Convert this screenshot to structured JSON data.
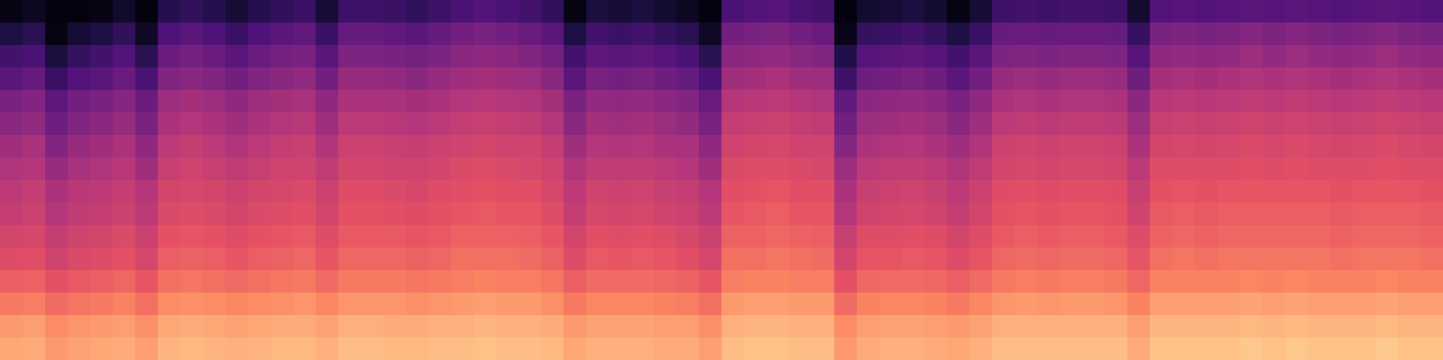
{
  "chart_data": {
    "type": "heatmap",
    "tick_labels": false,
    "zlim": [
      0,
      100
    ],
    "cells": [
      [
        3,
        6,
        2,
        2,
        3,
        8,
        2,
        15,
        18,
        15,
        10,
        15,
        18,
        20,
        10,
        21,
        21,
        20,
        18,
        21,
        24,
        26,
        24,
        22,
        18,
        3,
        12,
        10,
        12,
        9,
        6,
        2,
        24,
        26,
        27,
        24,
        22,
        2,
        9,
        10,
        12,
        9,
        3,
        10,
        21,
        22,
        21,
        22,
        22,
        21,
        9,
        26,
        27,
        26,
        27,
        28,
        27,
        28,
        27,
        26,
        27,
        28,
        27,
        26
      ],
      [
        13,
        16,
        3,
        10,
        13,
        18,
        7,
        25,
        28,
        25,
        20,
        25,
        28,
        30,
        20,
        31,
        31,
        30,
        28,
        31,
        34,
        36,
        34,
        32,
        28,
        13,
        22,
        20,
        22,
        19,
        16,
        7,
        34,
        36,
        37,
        34,
        32,
        4,
        19,
        20,
        22,
        19,
        13,
        20,
        31,
        32,
        31,
        32,
        32,
        31,
        19,
        36,
        37,
        36,
        37,
        39,
        37,
        39,
        37,
        36,
        37,
        39,
        37,
        36
      ],
      [
        22,
        24,
        12,
        19,
        22,
        26,
        16,
        32,
        35,
        32,
        28,
        32,
        35,
        36,
        28,
        37,
        37,
        36,
        35,
        37,
        40,
        41,
        40,
        38,
        35,
        22,
        29,
        28,
        29,
        27,
        24,
        16,
        40,
        41,
        42,
        40,
        38,
        14,
        27,
        28,
        29,
        27,
        22,
        28,
        37,
        38,
        37,
        38,
        38,
        37,
        27,
        41,
        42,
        41,
        42,
        44,
        42,
        44,
        42,
        41,
        42,
        44,
        42,
        41
      ],
      [
        28,
        31,
        20,
        26,
        28,
        32,
        24,
        38,
        40,
        38,
        34,
        38,
        40,
        42,
        34,
        43,
        43,
        42,
        40,
        43,
        45,
        46,
        45,
        44,
        40,
        28,
        36,
        34,
        36,
        33,
        31,
        24,
        45,
        46,
        48,
        45,
        44,
        21,
        33,
        34,
        36,
        33,
        28,
        34,
        43,
        44,
        43,
        44,
        44,
        43,
        33,
        46,
        48,
        46,
        48,
        49,
        48,
        49,
        48,
        46,
        48,
        49,
        48,
        46
      ],
      [
        36,
        38,
        29,
        34,
        36,
        39,
        32,
        44,
        46,
        44,
        41,
        44,
        46,
        47,
        41,
        48,
        48,
        47,
        46,
        48,
        50,
        51,
        50,
        49,
        46,
        36,
        42,
        41,
        42,
        40,
        38,
        32,
        50,
        51,
        52,
        50,
        49,
        30,
        40,
        41,
        42,
        40,
        36,
        41,
        48,
        49,
        48,
        49,
        49,
        48,
        40,
        51,
        52,
        51,
        52,
        53,
        52,
        53,
        52,
        51,
        52,
        53,
        52,
        51
      ],
      [
        40,
        42,
        33,
        38,
        40,
        43,
        36,
        48,
        50,
        48,
        45,
        48,
        50,
        51,
        45,
        52,
        52,
        51,
        50,
        52,
        54,
        55,
        54,
        53,
        50,
        40,
        46,
        45,
        46,
        44,
        42,
        36,
        54,
        55,
        56,
        54,
        53,
        34,
        44,
        45,
        46,
        44,
        40,
        45,
        52,
        53,
        52,
        53,
        53,
        52,
        44,
        55,
        56,
        55,
        56,
        57,
        56,
        57,
        56,
        55,
        56,
        57,
        56,
        55
      ],
      [
        45,
        47,
        38,
        43,
        45,
        48,
        41,
        52,
        54,
        52,
        49,
        52,
        54,
        55,
        49,
        56,
        56,
        55,
        54,
        56,
        57,
        58,
        57,
        57,
        54,
        45,
        50,
        49,
        50,
        48,
        47,
        41,
        57,
        58,
        59,
        57,
        57,
        39,
        48,
        49,
        50,
        48,
        45,
        49,
        56,
        57,
        56,
        57,
        57,
        56,
        48,
        58,
        59,
        58,
        59,
        60,
        59,
        60,
        59,
        58,
        59,
        60,
        59,
        58
      ],
      [
        49,
        50,
        43,
        47,
        49,
        51,
        45,
        55,
        57,
        55,
        53,
        55,
        57,
        57,
        53,
        58,
        58,
        57,
        57,
        58,
        60,
        61,
        60,
        59,
        57,
        49,
        53,
        53,
        53,
        52,
        50,
        45,
        60,
        61,
        61,
        60,
        59,
        44,
        52,
        53,
        53,
        52,
        49,
        53,
        58,
        59,
        58,
        59,
        59,
        58,
        52,
        61,
        61,
        61,
        61,
        62,
        61,
        62,
        61,
        61,
        61,
        62,
        61,
        61
      ],
      [
        52,
        54,
        48,
        51,
        52,
        54,
        50,
        58,
        59,
        58,
        56,
        58,
        59,
        60,
        56,
        61,
        61,
        60,
        59,
        61,
        62,
        63,
        62,
        62,
        59,
        52,
        57,
        56,
        57,
        55,
        54,
        50,
        62,
        63,
        64,
        62,
        62,
        48,
        55,
        56,
        57,
        55,
        52,
        56,
        61,
        62,
        61,
        62,
        62,
        61,
        55,
        63,
        64,
        63,
        64,
        64,
        64,
        64,
        64,
        63,
        64,
        64,
        64,
        63
      ],
      [
        54,
        56,
        50,
        53,
        54,
        56,
        52,
        60,
        61,
        60,
        58,
        60,
        61,
        62,
        58,
        63,
        63,
        62,
        61,
        63,
        64,
        65,
        64,
        64,
        61,
        54,
        59,
        58,
        59,
        57,
        56,
        52,
        64,
        65,
        66,
        64,
        64,
        50,
        57,
        58,
        59,
        57,
        54,
        58,
        63,
        64,
        63,
        64,
        64,
        63,
        57,
        65,
        66,
        65,
        66,
        66,
        66,
        66,
        66,
        65,
        66,
        66,
        66,
        65
      ],
      [
        58,
        59,
        54,
        57,
        58,
        60,
        56,
        63,
        64,
        63,
        61,
        63,
        64,
        65,
        61,
        65,
        65,
        65,
        64,
        65,
        67,
        67,
        67,
        66,
        64,
        58,
        62,
        61,
        62,
        61,
        59,
        56,
        67,
        67,
        68,
        67,
        66,
        55,
        61,
        61,
        62,
        61,
        58,
        61,
        65,
        66,
        65,
        66,
        66,
        65,
        61,
        67,
        68,
        67,
        68,
        68,
        68,
        68,
        68,
        67,
        68,
        68,
        68,
        67
      ],
      [
        61,
        62,
        57,
        60,
        61,
        63,
        59,
        66,
        67,
        66,
        64,
        66,
        67,
        68,
        64,
        68,
        68,
        68,
        67,
        68,
        70,
        70,
        70,
        69,
        67,
        61,
        65,
        64,
        65,
        64,
        62,
        59,
        70,
        70,
        71,
        70,
        69,
        58,
        64,
        64,
        65,
        64,
        61,
        64,
        68,
        69,
        68,
        69,
        69,
        68,
        64,
        70,
        71,
        70,
        71,
        71,
        71,
        71,
        71,
        70,
        71,
        71,
        71,
        70
      ],
      [
        66,
        67,
        63,
        65,
        66,
        68,
        64,
        70,
        71,
        70,
        69,
        70,
        71,
        72,
        69,
        72,
        72,
        72,
        71,
        72,
        73,
        74,
        73,
        73,
        71,
        66,
        69,
        69,
        69,
        68,
        67,
        64,
        73,
        74,
        74,
        73,
        73,
        63,
        68,
        69,
        69,
        68,
        66,
        69,
        72,
        73,
        72,
        73,
        73,
        72,
        68,
        74,
        74,
        74,
        74,
        75,
        74,
        75,
        74,
        74,
        74,
        75,
        74,
        74
      ],
      [
        72,
        73,
        69,
        71,
        72,
        74,
        70,
        76,
        77,
        76,
        75,
        76,
        77,
        78,
        75,
        78,
        78,
        78,
        77,
        78,
        79,
        80,
        79,
        79,
        77,
        72,
        75,
        75,
        75,
        74,
        73,
        70,
        79,
        80,
        80,
        79,
        79,
        69,
        74,
        75,
        75,
        74,
        72,
        75,
        78,
        79,
        78,
        79,
        79,
        78,
        74,
        80,
        80,
        80,
        80,
        81,
        80,
        81,
        80,
        80,
        80,
        81,
        80,
        80
      ],
      [
        79,
        80,
        76,
        78,
        79,
        80,
        77,
        82,
        83,
        82,
        81,
        82,
        83,
        83,
        81,
        84,
        84,
        83,
        83,
        84,
        84,
        85,
        84,
        84,
        83,
        79,
        81,
        81,
        81,
        80,
        80,
        77,
        84,
        85,
        85,
        84,
        84,
        76,
        80,
        81,
        81,
        80,
        79,
        81,
        84,
        84,
        84,
        84,
        84,
        84,
        80,
        85,
        85,
        85,
        85,
        86,
        85,
        86,
        85,
        85,
        85,
        86,
        85,
        85
      ],
      [
        82,
        83,
        79,
        81,
        82,
        83,
        80,
        85,
        86,
        85,
        84,
        85,
        86,
        86,
        84,
        87,
        87,
        86,
        86,
        87,
        87,
        88,
        87,
        87,
        86,
        82,
        84,
        84,
        84,
        83,
        83,
        80,
        87,
        88,
        88,
        87,
        87,
        79,
        83,
        84,
        84,
        83,
        82,
        84,
        87,
        87,
        87,
        87,
        87,
        87,
        83,
        88,
        88,
        88,
        88,
        89,
        88,
        89,
        88,
        88,
        88,
        89,
        88,
        88
      ]
    ]
  }
}
